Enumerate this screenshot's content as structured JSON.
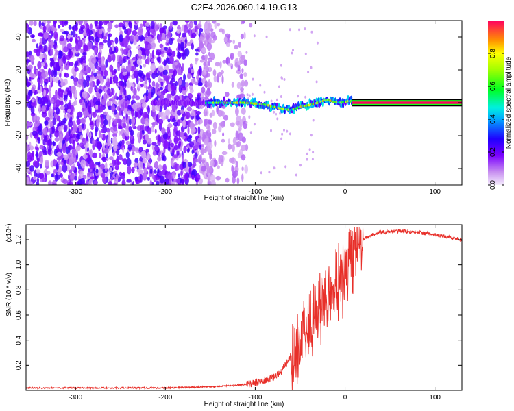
{
  "title": "C2E4.2026.060.14.19.G13",
  "chart_data": [
    {
      "type": "heatmap",
      "xlabel": "Height of straight line (km)",
      "ylabel": "Frequency (Hz)",
      "xlim": [
        -355,
        130
      ],
      "ylim": [
        -50,
        50
      ],
      "xticks": [
        -300,
        -200,
        -100,
        0,
        100
      ],
      "yticks": [
        -40,
        -20,
        0,
        20,
        40
      ],
      "xtick_labels": [
        "-300",
        "-200",
        "-100",
        "0",
        "100"
      ],
      "ytick_labels": [
        "-40",
        "-20",
        "0",
        "20",
        "40"
      ],
      "colorbar": {
        "label": "Normalized spectral amplitude",
        "range": [
          0,
          1
        ],
        "ticks": [
          0.0,
          0.2,
          0.4,
          0.6,
          0.8
        ],
        "tick_labels": [
          "0.0",
          "0.2",
          "0.4",
          "0.6",
          "0.8"
        ]
      },
      "ridge": [
        {
          "x": -210,
          "y": 0.0
        },
        {
          "x": -190,
          "y": 0.0
        },
        {
          "x": -170,
          "y": -0.5
        },
        {
          "x": -150,
          "y": 0.0
        },
        {
          "x": -130,
          "y": 0.0
        },
        {
          "x": -110,
          "y": 0.0
        },
        {
          "x": -90,
          "y": -1.0
        },
        {
          "x": -75,
          "y": -3.0
        },
        {
          "x": -60,
          "y": -4.5
        },
        {
          "x": -50,
          "y": -2.5
        },
        {
          "x": -40,
          "y": -1.5
        },
        {
          "x": -30,
          "y": 0.0
        },
        {
          "x": -20,
          "y": 2.0
        },
        {
          "x": -12,
          "y": 0.5
        },
        {
          "x": -5,
          "y": 0.0
        },
        {
          "x": 5,
          "y": 1.0
        },
        {
          "x": 15,
          "y": 0.0
        },
        {
          "x": 130,
          "y": 0.0
        }
      ]
    },
    {
      "type": "line",
      "xlabel": "Height of straight line (km)",
      "ylabel": "SNR (10 * v/v)",
      "y_multiplier": "(x10⁴)",
      "xlim": [
        -355,
        130
      ],
      "ylim": [
        0,
        1.32
      ],
      "xticks": [
        -300,
        -200,
        -100,
        0,
        100
      ],
      "yticks": [
        0.2,
        0.4,
        0.6,
        0.8,
        1.0,
        1.2
      ],
      "xtick_labels": [
        "-300",
        "-200",
        "-100",
        "0",
        "100"
      ],
      "ytick_labels": [
        "0.2",
        "0.4",
        "0.6",
        "0.8",
        "1.0",
        "1.2"
      ],
      "color": "#e8302a",
      "x": [
        -355,
        -300,
        -250,
        -200,
        -150,
        -120,
        -100,
        -80,
        -70,
        -60,
        -50,
        -40,
        -30,
        -20,
        -10,
        0,
        10,
        20,
        30,
        40,
        60,
        80,
        100,
        130
      ],
      "y": [
        0.02,
        0.02,
        0.02,
        0.02,
        0.03,
        0.04,
        0.06,
        0.1,
        0.16,
        0.28,
        0.42,
        0.55,
        0.66,
        0.78,
        0.9,
        1.0,
        1.12,
        1.2,
        1.24,
        1.26,
        1.27,
        1.26,
        1.24,
        1.2
      ]
    }
  ]
}
